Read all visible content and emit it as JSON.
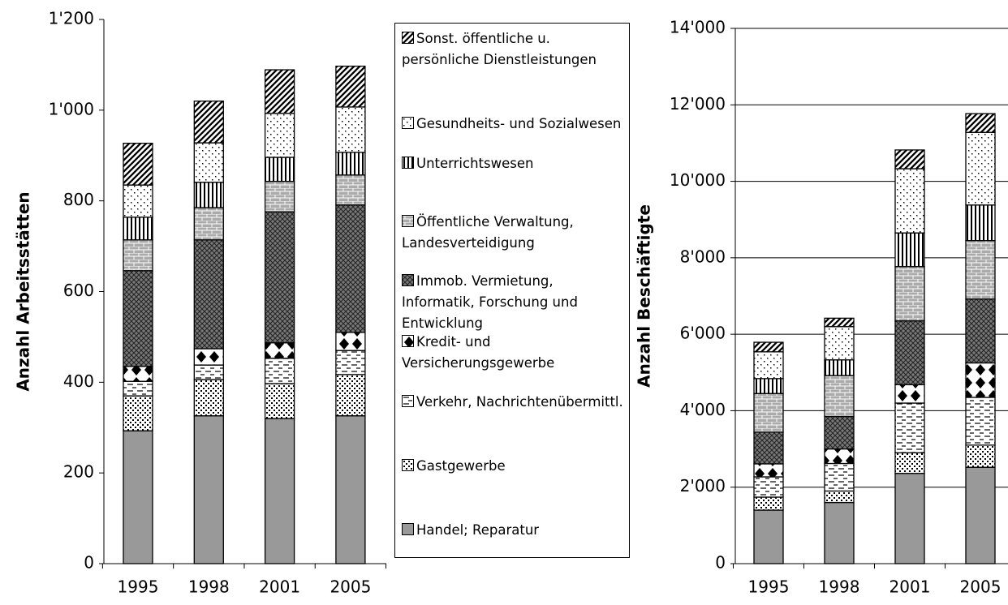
{
  "chart_data": [
    {
      "type": "stacked-bar",
      "y_label": "Anzahl Arbeitsstätten",
      "categories": [
        "1995",
        "1998",
        "2001",
        "2005"
      ],
      "ylim": [
        0,
        1200
      ],
      "yticks": [
        0,
        200,
        400,
        600,
        800,
        {
          "value": 1000,
          "label": "1'000"
        },
        {
          "value": 1200,
          "label": "1'200"
        }
      ],
      "grid": false,
      "series": [
        {
          "name": "Handel; Reparatur",
          "color": "#999999",
          "pattern": "solid",
          "values": [
            293,
            326,
            320,
            326
          ]
        },
        {
          "name": "Gastgewerbe",
          "color": "#000000",
          "pattern": "dots",
          "values": [
            77,
            80,
            77,
            91
          ]
        },
        {
          "name": "Verkehr, Nachrichtenübermittl.",
          "color": "#000000",
          "pattern": "dashes",
          "values": [
            32,
            32,
            56,
            53
          ]
        },
        {
          "name": "Kredit- und Versicherungsgewerbe",
          "color": "#000000",
          "pattern": "diamonds",
          "values": [
            33,
            36,
            34,
            40
          ]
        },
        {
          "name": "Immob. Vermietung, Informatik, Forschung und Entwicklung",
          "color": "#000000",
          "pattern": "crosshatch",
          "values": [
            211,
            240,
            289,
            281
          ]
        },
        {
          "name": "Öffentliche Verwaltung, Landesverteidigung",
          "color": "#888888",
          "pattern": "brick",
          "values": [
            68,
            71,
            67,
            66
          ]
        },
        {
          "name": "Unterrichtswesen",
          "color": "#000000",
          "pattern": "vlines",
          "values": [
            50,
            56,
            53,
            50
          ]
        },
        {
          "name": "Gesundheits- und Sozialwesen",
          "color": "#000000",
          "pattern": "sparse-dots",
          "values": [
            71,
            87,
            97,
            100
          ]
        },
        {
          "name": "Sonst. öffentliche u. persönliche Dienstleistungen",
          "color": "#000000",
          "pattern": "diagonal",
          "values": [
            92,
            92,
            96,
            90
          ]
        }
      ]
    },
    {
      "type": "stacked-bar",
      "y_label": "Anzahl Beschäftigte",
      "categories": [
        "1995",
        "1998",
        "2001",
        "2005"
      ],
      "ylim": [
        0,
        14000
      ],
      "yticks": [
        0,
        {
          "value": 2000,
          "label": "2'000"
        },
        {
          "value": 4000,
          "label": "4'000"
        },
        {
          "value": 6000,
          "label": "6'000"
        },
        {
          "value": 8000,
          "label": "8'000"
        },
        {
          "value": 10000,
          "label": "10'000"
        },
        {
          "value": 12000,
          "label": "12'000"
        },
        {
          "value": 14000,
          "label": "14'000"
        }
      ],
      "grid": true,
      "series": [
        {
          "color": "#999999",
          "pattern": "solid",
          "values": [
            1400,
            1600,
            2360,
            2520
          ]
        },
        {
          "color": "#000000",
          "pattern": "dots",
          "values": [
            340,
            300,
            540,
            580
          ]
        },
        {
          "color": "#000000",
          "pattern": "dashes",
          "values": [
            530,
            720,
            1300,
            1250
          ]
        },
        {
          "color": "#000000",
          "pattern": "diamonds",
          "values": [
            340,
            380,
            480,
            900
          ]
        },
        {
          "color": "#000000",
          "pattern": "crosshatch",
          "values": [
            830,
            850,
            1670,
            1670
          ]
        },
        {
          "color": "#888888",
          "pattern": "brick",
          "values": [
            1010,
            1070,
            1420,
            1530
          ]
        },
        {
          "color": "#000000",
          "pattern": "vlines",
          "values": [
            390,
            410,
            880,
            930
          ]
        },
        {
          "color": "#000000",
          "pattern": "sparse-dots",
          "values": [
            700,
            870,
            1680,
            1900
          ]
        },
        {
          "color": "#000000",
          "pattern": "diagonal",
          "values": [
            250,
            220,
            490,
            490
          ]
        }
      ]
    }
  ]
}
